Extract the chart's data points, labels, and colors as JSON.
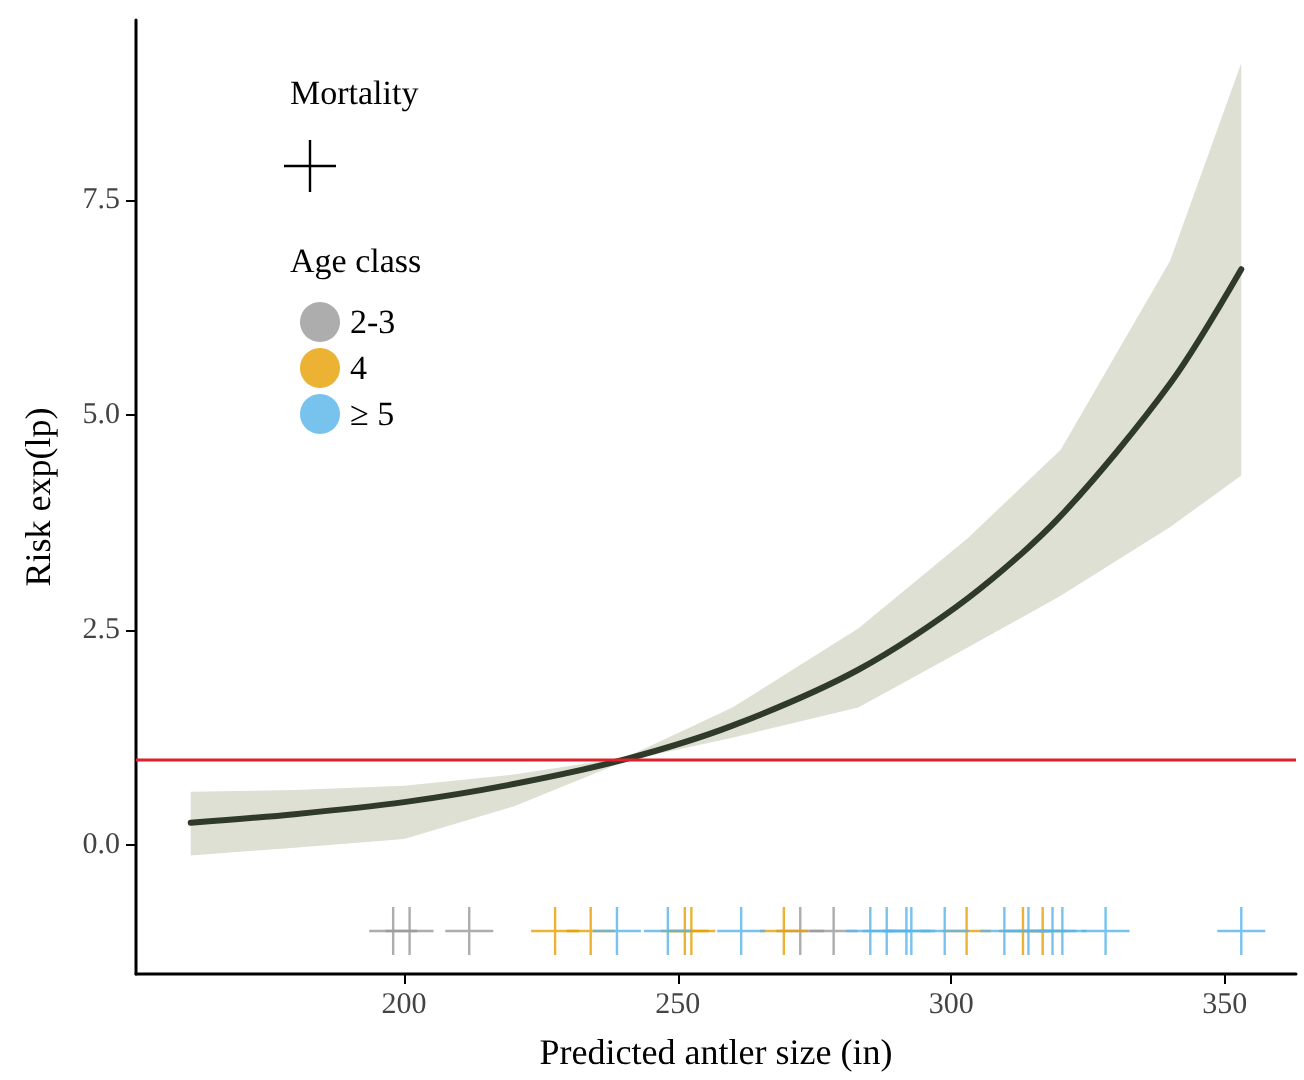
{
  "chart_data": {
    "type": "line",
    "xlabel": "Predicted antler size (in)",
    "ylabel": "Risk exp(lp)",
    "legend_title": "Age class",
    "annotations": [
      "Mortality"
    ],
    "xlim": [
      151,
      363
    ],
    "xticks": [
      200,
      250,
      300,
      350
    ],
    "ylim": [
      -1.5,
      9.6
    ],
    "yticks": [
      {
        "value": 0,
        "label": "0.0"
      },
      {
        "value": 2.5,
        "label": "2.5"
      },
      {
        "value": 5,
        "label": "5.0"
      },
      {
        "value": 7.5,
        "label": "7.5"
      }
    ],
    "grid": false,
    "legend": "top left",
    "line_style": "solid",
    "ref_lines": [
      {
        "axis": "y",
        "value": 1,
        "color": "#e0202a"
      }
    ],
    "series": [
      {
        "color": "#2f3a2a",
        "x": [
          161,
          180,
          200,
          220,
          240.5,
          260,
          283,
          303,
          320,
          340,
          353
        ],
        "values": [
          0.26,
          0.36,
          0.5,
          0.71,
          1.0,
          1.39,
          2.04,
          2.87,
          3.83,
          5.37,
          6.7
        ],
        "lower": [
          -0.12,
          -0.03,
          0.07,
          0.45,
          0.98,
          1.25,
          1.6,
          2.3,
          2.9,
          3.7,
          4.3
        ],
        "upper": [
          0.62,
          0.64,
          0.69,
          0.82,
          1.02,
          1.6,
          2.52,
          3.57,
          4.6,
          6.8,
          9.1
        ]
      },
      {
        "name": "2-3",
        "type": "scatter",
        "marker": "cross",
        "color": "#999999",
        "x": [
          198.0,
          201.0,
          211.9,
          272.4,
          278.5
        ],
        "values": [
          -1,
          -1,
          -1,
          -1,
          -1
        ]
      },
      {
        "name": "4",
        "type": "scatter",
        "marker": "cross",
        "color": "#e69f00",
        "x": [
          227.6,
          234.1,
          251.3,
          252.5,
          269.4,
          302.8,
          313.1,
          316.7
        ],
        "values": [
          -1,
          -1,
          -1,
          -1,
          -1,
          -1,
          -1,
          -1
        ]
      },
      {
        "name": "≥ 5",
        "type": "scatter",
        "marker": "cross",
        "color": "#56b4e9",
        "x": [
          238.9,
          248.2,
          261.6,
          285.2,
          288.2,
          291.8,
          292.7,
          298.8,
          309.7,
          314.1,
          318.5,
          320.3,
          328.2,
          353.0
        ],
        "values": [
          -1,
          -1,
          -1,
          -1,
          -1,
          -1,
          -1,
          -1,
          -1,
          -1,
          -1,
          -1,
          -1,
          -1
        ]
      }
    ]
  }
}
